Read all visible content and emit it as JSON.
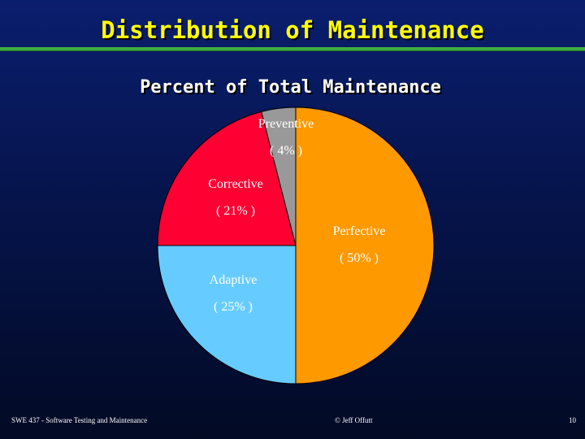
{
  "slide": {
    "title": "Distribution of Maintenance",
    "footer_left": "SWE 437 - Software Testing and Maintenance",
    "footer_center": "© Jeff Offutt",
    "page_number": "10"
  },
  "chart_data": {
    "type": "pie",
    "title": "Percent of Total Maintenance",
    "slices": [
      {
        "name": "Perfective",
        "value": 50,
        "label": "( 50% )",
        "color": "#ff9900"
      },
      {
        "name": "Adaptive",
        "value": 25,
        "label": "( 25% )",
        "color": "#66ccff"
      },
      {
        "name": "Corrective",
        "value": 21,
        "label": "( 21% )",
        "color": "#ff0033"
      },
      {
        "name": "Preventive",
        "value": 4,
        "label": "( 4% )",
        "color": "#999999"
      }
    ]
  }
}
